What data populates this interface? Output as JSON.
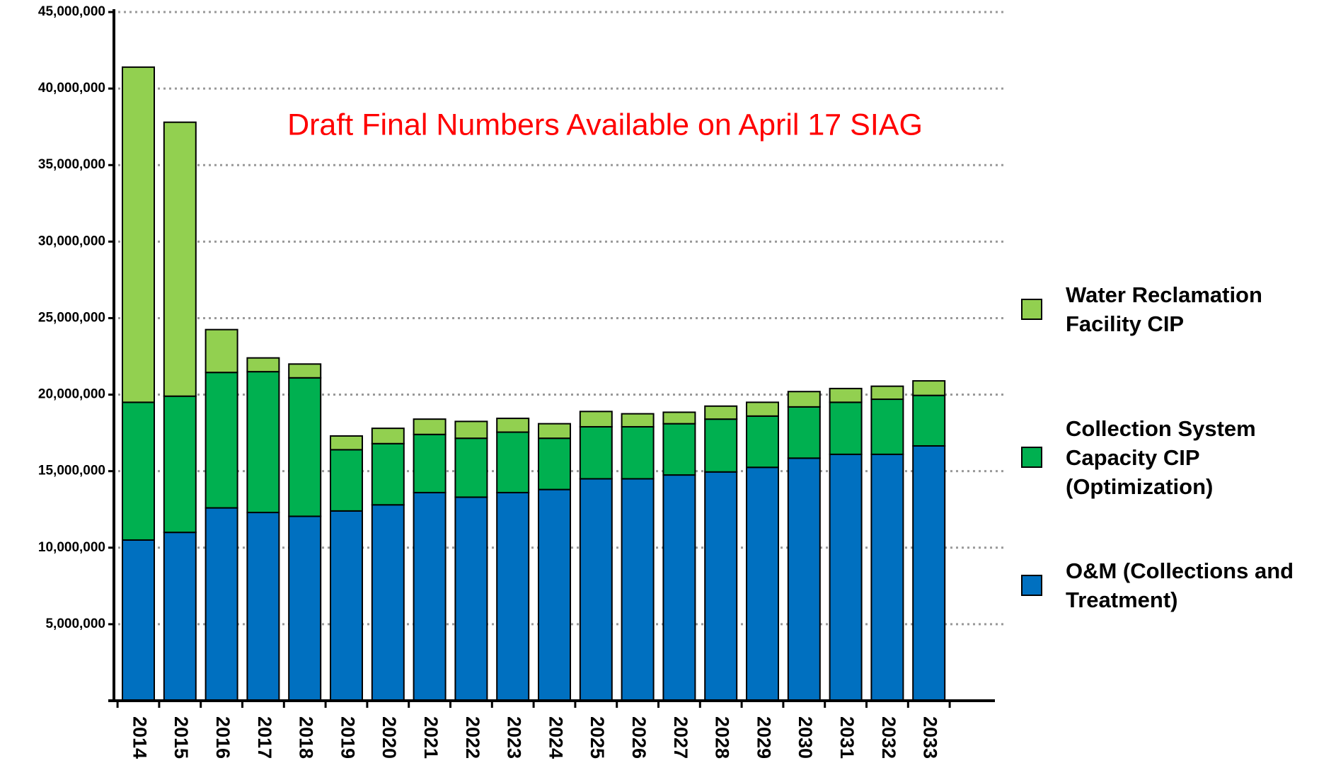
{
  "chart_data": {
    "type": "stacked_bar",
    "annotation": "Draft Final Numbers Available on April 17 SIAG",
    "categories": [
      "2014",
      "2015",
      "2016",
      "2017",
      "2018",
      "2019",
      "2020",
      "2021",
      "2022",
      "2023",
      "2024",
      "2025",
      "2026",
      "2027",
      "2028",
      "2029",
      "2030",
      "2031",
      "2032",
      "2033"
    ],
    "series": [
      {
        "name": "O&M (Collections and Treatment)",
        "color": "#0070c0",
        "values": [
          10500000,
          11000000,
          12600000,
          12300000,
          12050000,
          12400000,
          12800000,
          13600000,
          13300000,
          13600000,
          13800000,
          14500000,
          14500000,
          14750000,
          14950000,
          15250000,
          15850000,
          16100000,
          16100000,
          16650000
        ]
      },
      {
        "name": "Collection System Capacity CIP (Optimization)",
        "color": "#00b050",
        "values": [
          9000000,
          8900000,
          8850000,
          9200000,
          9050000,
          4000000,
          4000000,
          3800000,
          3850000,
          3950000,
          3350000,
          3400000,
          3400000,
          3350000,
          3450000,
          3350000,
          3350000,
          3400000,
          3600000,
          3300000
        ]
      },
      {
        "name": "Water Reclamation Facility CIP",
        "color": "#92d050",
        "values": [
          21900000,
          17900000,
          2800000,
          900000,
          900000,
          900000,
          1000000,
          1000000,
          1100000,
          900000,
          950000,
          1000000,
          850000,
          750000,
          850000,
          900000,
          1000000,
          900000,
          850000,
          950000
        ]
      }
    ],
    "ylim": [
      0,
      45000000
    ],
    "yticks": [
      {
        "value": 5000000,
        "label": "5,000,000"
      },
      {
        "value": 10000000,
        "label": "10,000,000"
      },
      {
        "value": 15000000,
        "label": "15,000,000"
      },
      {
        "value": 20000000,
        "label": "20,000,000"
      },
      {
        "value": 25000000,
        "label": "25,000,000"
      },
      {
        "value": 30000000,
        "label": "30,000,000"
      },
      {
        "value": 35000000,
        "label": "35,000,000"
      },
      {
        "value": 40000000,
        "label": "40,000,000"
      },
      {
        "value": 45000000,
        "label": "45,000,000"
      }
    ],
    "grid": true,
    "legend": "right"
  }
}
